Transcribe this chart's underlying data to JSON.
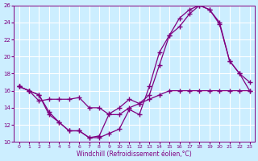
{
  "title": "",
  "xlabel": "Windchill (Refroidissement éolien,°C)",
  "ylabel": "",
  "bg_color": "#cceeff",
  "line_color": "#800080",
  "grid_color": "#ffffff",
  "xlim": [
    -0.5,
    23.5
  ],
  "ylim": [
    10,
    26
  ],
  "yticks": [
    10,
    12,
    14,
    16,
    18,
    20,
    22,
    24,
    26
  ],
  "xticks": [
    0,
    1,
    2,
    3,
    4,
    5,
    6,
    7,
    8,
    9,
    10,
    11,
    12,
    13,
    14,
    15,
    16,
    17,
    18,
    19,
    20,
    21,
    22,
    23
  ],
  "line1_x": [
    0,
    1,
    2,
    3,
    4,
    5,
    6,
    7,
    8,
    9,
    10,
    11,
    12,
    13,
    14,
    15,
    16,
    17,
    18,
    19,
    20,
    21,
    22,
    23
  ],
  "line1_y": [
    16.5,
    16.0,
    14.8,
    15.0,
    15.0,
    15.0,
    15.2,
    14.0,
    14.0,
    13.2,
    13.2,
    14.0,
    14.5,
    15.5,
    19.0,
    22.5,
    23.5,
    25.0,
    26.0,
    25.5,
    23.8,
    19.5,
    18.0,
    16.0
  ],
  "line2_x": [
    0,
    1,
    2,
    3,
    4,
    5,
    6,
    7,
    8,
    9,
    10,
    11,
    12,
    13,
    14,
    15,
    16,
    17,
    18,
    19,
    20,
    21,
    22,
    23
  ],
  "line2_y": [
    16.5,
    16.0,
    15.5,
    13.2,
    12.3,
    11.3,
    11.3,
    10.5,
    10.5,
    11.0,
    11.5,
    13.8,
    13.2,
    16.5,
    20.5,
    22.5,
    24.5,
    25.5,
    26.0,
    25.5,
    24.0,
    19.5,
    18.0,
    17.0
  ],
  "line3_x": [
    0,
    1,
    2,
    3,
    4,
    5,
    6,
    7,
    8,
    9,
    10,
    11,
    12,
    13,
    14,
    15,
    16,
    17,
    18,
    19,
    20,
    21,
    22,
    23
  ],
  "line3_y": [
    16.5,
    16.0,
    15.5,
    13.5,
    12.3,
    11.3,
    11.3,
    10.5,
    10.7,
    13.3,
    14.0,
    15.0,
    14.5,
    15.0,
    15.5,
    16.0,
    16.0,
    16.0,
    16.0,
    16.0,
    16.0,
    16.0,
    16.0,
    16.0
  ]
}
